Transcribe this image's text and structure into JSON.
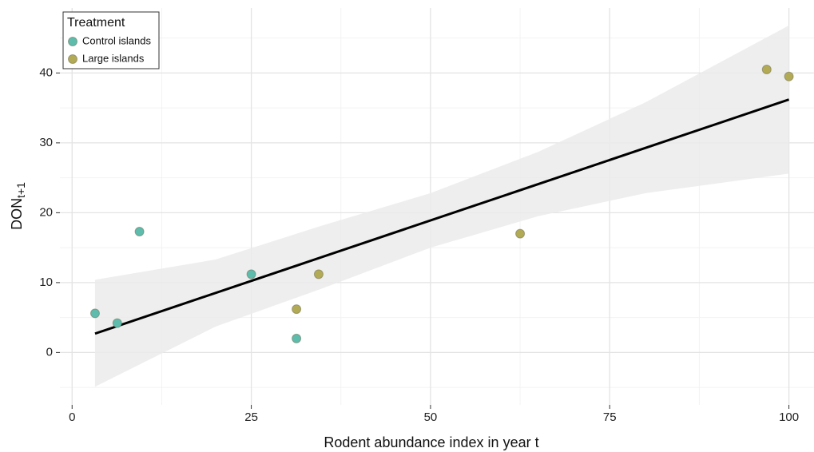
{
  "chart_data": {
    "type": "scatter",
    "x_label": "Rodent abundance index in year t",
    "y_label": "DON",
    "y_label_subscript": "t+1",
    "xlim": [
      -1.7,
      103.5
    ],
    "ylim": [
      -7.5,
      49.3
    ],
    "xticks": [
      0,
      25,
      50,
      75,
      100
    ],
    "yticks": [
      0,
      10,
      20,
      30,
      40
    ],
    "x_minor_ticks": [
      12.5,
      37.5,
      62.5,
      87.5
    ],
    "y_minor_ticks": [
      -5,
      5,
      15,
      25,
      35,
      45
    ],
    "grid": true,
    "legend": {
      "title": "Treatment",
      "position": "top-left"
    },
    "series": [
      {
        "name": "Control islands",
        "color": "#5dbcac",
        "x": [
          3.2,
          6.3,
          9.4,
          25,
          31.3
        ],
        "values": [
          5.6,
          4.2,
          17.3,
          11.2,
          2.0
        ]
      },
      {
        "name": "Large islands",
        "color": "#b3aa55",
        "x": [
          31.3,
          34.4,
          62.5,
          96.9,
          100
        ],
        "values": [
          6.2,
          11.2,
          17.0,
          40.5,
          39.5
        ]
      }
    ],
    "fit": {
      "color": "#000000",
      "x": [
        3.2,
        100
      ],
      "values": [
        2.7,
        36.2
      ]
    },
    "band": {
      "color": "#ebebeb",
      "x": [
        3.2,
        20,
        35,
        50,
        65,
        80,
        100
      ],
      "lower": [
        -4.9,
        3.7,
        9.2,
        15.0,
        19.5,
        22.8,
        25.6
      ],
      "upper": [
        10.4,
        13.3,
        18.2,
        22.8,
        28.7,
        35.8,
        46.8
      ]
    }
  }
}
